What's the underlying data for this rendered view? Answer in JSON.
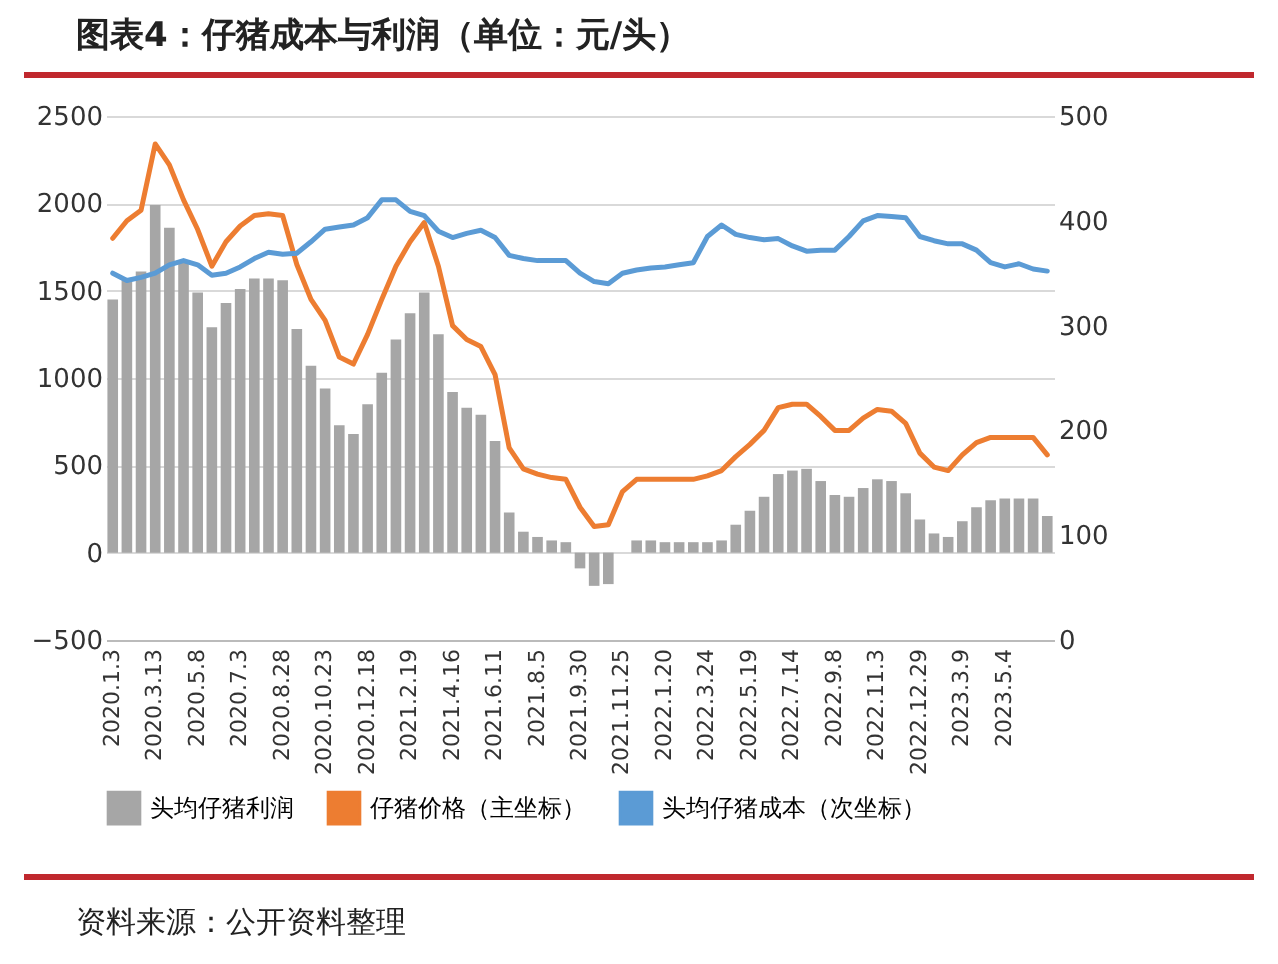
{
  "chart_data": {
    "type": "bar",
    "title": "图表4：仔猪成本与利润（单位：元/头）",
    "annotations": [
      "资料来源：公开资料整理"
    ],
    "categories": [
      "2020.1.3",
      null,
      null,
      "2020.3.13",
      null,
      null,
      "2020.5.8",
      null,
      null,
      "2020.7.3",
      null,
      null,
      "2020.8.28",
      null,
      null,
      "2020.10.23",
      null,
      null,
      "2020.12.18",
      null,
      null,
      "2021.2.19",
      null,
      null,
      "2021.4.16",
      null,
      null,
      "2021.6.11",
      null,
      null,
      "2021.8.5",
      null,
      null,
      "2021.9.30",
      null,
      null,
      "2021.11.25",
      null,
      null,
      "2022.1.20",
      null,
      null,
      "2022.3.24",
      null,
      null,
      "2022.5.19",
      null,
      null,
      "2022.7.14",
      null,
      null,
      "2022.9.8",
      null,
      null,
      "2022.11.3",
      null,
      null,
      "2022.12.29",
      null,
      null,
      "2023.3.9",
      null,
      null,
      "2023.5.4",
      null,
      null,
      null
    ],
    "series": [
      {
        "name": "头均仔猪利润",
        "color": "#a6a6a6",
        "values": [
          1450,
          1560,
          1610,
          1990,
          1860,
          1660,
          1490,
          1290,
          1430,
          1510,
          1570,
          1570,
          1560,
          1280,
          1070,
          940,
          730,
          680,
          850,
          1030,
          1220,
          1370,
          1490,
          1250,
          920,
          830,
          790,
          640,
          230,
          120,
          90,
          70,
          60,
          -90,
          -190,
          -180,
          0,
          70,
          70,
          60,
          60,
          60,
          60,
          70,
          160,
          240,
          320,
          450,
          470,
          480,
          410,
          330,
          320,
          370,
          420,
          410,
          340,
          190,
          110,
          90,
          180,
          260,
          300,
          310,
          310,
          310,
          210
        ]
      },
      {
        "name": "仔猪价格（主坐标）",
        "type": "line",
        "color": "#ed7d31",
        "values": [
          1800,
          1900,
          1960,
          2340,
          2220,
          2020,
          1850,
          1640,
          1780,
          1870,
          1930,
          1940,
          1930,
          1650,
          1450,
          1330,
          1120,
          1080,
          1250,
          1450,
          1640,
          1780,
          1890,
          1640,
          1300,
          1220,
          1180,
          1020,
          600,
          480,
          450,
          430,
          420,
          260,
          150,
          160,
          350,
          420,
          420,
          420,
          420,
          420,
          440,
          470,
          550,
          620,
          700,
          830,
          850,
          850,
          780,
          700,
          700,
          770,
          820,
          810,
          740,
          570,
          490,
          470,
          560,
          630,
          660,
          660,
          660,
          660,
          560
        ]
      },
      {
        "name": "头均仔猪成本（次坐标）",
        "type": "line",
        "axis": "y2",
        "color": "#5b9bd5",
        "values": [
          350,
          343,
          346,
          350,
          358,
          362,
          358,
          348,
          350,
          356,
          364,
          370,
          368,
          369,
          380,
          392,
          394,
          396,
          403,
          420,
          420,
          409,
          405,
          390,
          384,
          388,
          391,
          384,
          367,
          364,
          362,
          362,
          362,
          350,
          342,
          340,
          350,
          353,
          355,
          356,
          358,
          360,
          385,
          396,
          387,
          384,
          382,
          383,
          376,
          371,
          372,
          372,
          385,
          400,
          405,
          404,
          403,
          385,
          381,
          378,
          378,
          372,
          360,
          356,
          359,
          354,
          352
        ]
      }
    ],
    "ylim": [
      -500,
      2500
    ],
    "yticks": [
      -500,
      0,
      500,
      1000,
      1500,
      2000,
      2500
    ],
    "y2lim": [
      0,
      500
    ],
    "y2ticks": [
      0,
      100,
      200,
      300,
      400,
      500
    ],
    "grid": "y",
    "legend": "bottom"
  }
}
